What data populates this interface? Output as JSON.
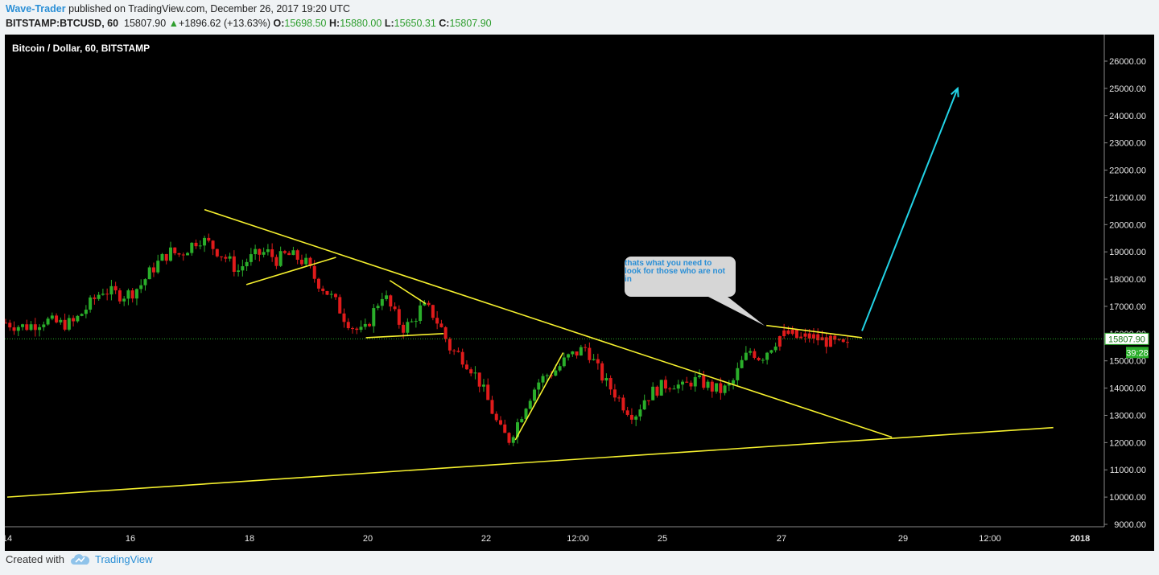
{
  "header": {
    "author": "Wave-Trader",
    "published": "published on TradingView.com, December 26, 2017 19:20 UTC",
    "symbol": "BITSTAMP:BTCUSD, 60",
    "last": "15807.90",
    "change_arrow": "▲",
    "change": "+1896.62 (+13.63%)",
    "o_label": "O:",
    "o": "15698.50",
    "h_label": "H:",
    "h": "15880.00",
    "l_label": "L:",
    "l": "15650.31",
    "c_label": "C:",
    "c": "15807.90"
  },
  "chart_title": "Bitcoin / Dollar, 60, BITSTAMP",
  "annotation": "thats what you need to look for those who are not in",
  "price_badge": "15807.90",
  "volume_badge": "39:28",
  "footer": {
    "created": "Created with",
    "brand": "TradingView",
    "logo_icon": "tradingview-cloud-icon"
  },
  "colors": {
    "up": "#2aae2a",
    "down": "#e01b1b",
    "trendline": "#f5f02e",
    "arrow": "#22d3e6",
    "lastprice": "#2aae2a"
  },
  "chart_data": {
    "type": "candlestick",
    "title": "Bitcoin / Dollar, 60, BITSTAMP",
    "ylim": [
      8600,
      27000
    ],
    "yticks": [
      "26000.00",
      "25000.00",
      "24000.00",
      "23000.00",
      "22000.00",
      "21000.00",
      "20000.00",
      "19000.00",
      "18000.00",
      "17000.00",
      "16000.00",
      "15000.00",
      "14000.00",
      "13000.00",
      "12000.00",
      "11000.00",
      "10000.00",
      "9000.00"
    ],
    "xticks": [
      "14",
      "16",
      "18",
      "20",
      "22",
      "12:00",
      "25",
      "27",
      "29",
      "12:00",
      "2018"
    ],
    "last_price": 15807.9,
    "price_path": [
      [
        0,
        16400
      ],
      [
        2,
        16300
      ],
      [
        4,
        16250
      ],
      [
        6,
        16350
      ],
      [
        8,
        16500
      ],
      [
        10,
        16400
      ],
      [
        12,
        16350
      ],
      [
        14,
        16400
      ],
      [
        16,
        16800
      ],
      [
        18,
        17200
      ],
      [
        20,
        17600
      ],
      [
        22,
        17500
      ],
      [
        24,
        17400
      ],
      [
        26,
        17500
      ],
      [
        28,
        17800
      ],
      [
        30,
        18300
      ],
      [
        32,
        18700
      ],
      [
        34,
        19000
      ],
      [
        36,
        18900
      ],
      [
        38,
        19200
      ],
      [
        40,
        19500
      ],
      [
        42,
        19300
      ],
      [
        44,
        19000
      ],
      [
        46,
        18700
      ],
      [
        48,
        18300
      ],
      [
        50,
        18700
      ],
      [
        52,
        18900
      ],
      [
        54,
        19000
      ],
      [
        56,
        18700
      ],
      [
        58,
        18900
      ],
      [
        60,
        18800
      ],
      [
        62,
        18600
      ],
      [
        64,
        18000
      ],
      [
        66,
        17600
      ],
      [
        68,
        17200
      ],
      [
        70,
        16600
      ],
      [
        72,
        16200
      ],
      [
        74,
        16000
      ],
      [
        76,
        16800
      ],
      [
        78,
        17500
      ],
      [
        80,
        16800
      ],
      [
        82,
        16200
      ],
      [
        84,
        16400
      ],
      [
        86,
        17000
      ],
      [
        88,
        16800
      ],
      [
        90,
        16200
      ],
      [
        92,
        15400
      ],
      [
        94,
        15200
      ],
      [
        96,
        14800
      ],
      [
        98,
        14200
      ],
      [
        100,
        13400
      ],
      [
        102,
        12500
      ],
      [
        104,
        12100
      ],
      [
        106,
        12800
      ],
      [
        108,
        13600
      ],
      [
        110,
        14200
      ],
      [
        112,
        14500
      ],
      [
        114,
        14700
      ],
      [
        116,
        15100
      ],
      [
        118,
        15300
      ],
      [
        120,
        15500
      ],
      [
        122,
        14800
      ],
      [
        124,
        14200
      ],
      [
        126,
        13800
      ],
      [
        128,
        13300
      ],
      [
        130,
        13000
      ],
      [
        132,
        13600
      ],
      [
        134,
        13900
      ],
      [
        136,
        14100
      ],
      [
        138,
        14200
      ],
      [
        140,
        14000
      ],
      [
        142,
        14300
      ],
      [
        144,
        14200
      ],
      [
        146,
        14000
      ],
      [
        148,
        13900
      ],
      [
        150,
        14100
      ],
      [
        152,
        14900
      ],
      [
        154,
        15400
      ],
      [
        156,
        15100
      ],
      [
        158,
        15500
      ],
      [
        160,
        15900
      ],
      [
        162,
        16000
      ],
      [
        164,
        15800
      ],
      [
        166,
        15900
      ],
      [
        168,
        15800
      ],
      [
        170,
        15700
      ],
      [
        172,
        15600
      ],
      [
        174,
        15500
      ]
    ],
    "trendlines": [
      {
        "from": [
          17.3,
          20550
        ],
        "to": [
          28.8,
          12200
        ]
      },
      {
        "from": [
          14,
          10000
        ],
        "to": [
          31.5,
          12550
        ]
      },
      {
        "from": [
          18.0,
          17800
        ],
        "to": [
          19.5,
          18800
        ]
      },
      {
        "from": [
          20.4,
          17950
        ],
        "to": [
          21.0,
          17100
        ]
      },
      {
        "from": [
          20.0,
          15850
        ],
        "to": [
          21.3,
          16000
        ]
      },
      {
        "from": [
          22.5,
          12100
        ],
        "to": [
          23.3,
          15300
        ]
      },
      {
        "from": [
          26.7,
          16300
        ],
        "to": [
          28.3,
          15850
        ]
      }
    ],
    "arrow": {
      "from": [
        28.3,
        16100
      ],
      "to": [
        29.9,
        25000
      ]
    }
  }
}
